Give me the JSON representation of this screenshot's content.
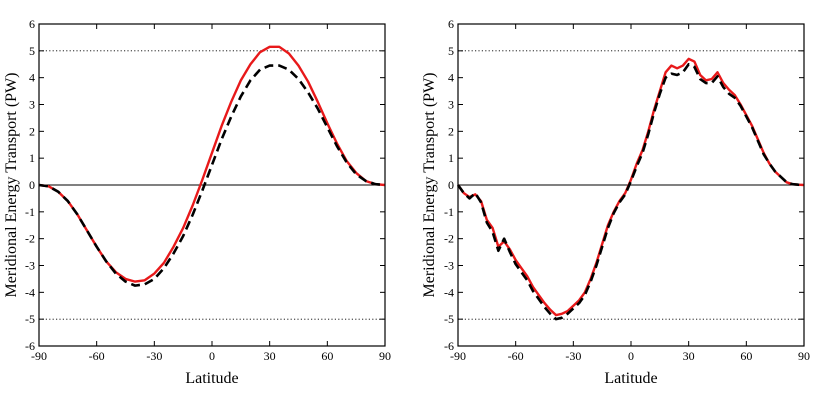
{
  "chart_data": [
    {
      "type": "line",
      "panel": "left",
      "title": "",
      "xlabel": "Latitude",
      "ylabel": "Meridional Energy Transport (PW)",
      "xlim": [
        -90,
        90
      ],
      "ylim": [
        -6,
        6
      ],
      "xticks": [
        -90,
        -60,
        -30,
        0,
        30,
        60,
        90
      ],
      "yticks": [
        -6,
        -5,
        -4,
        -3,
        -2,
        -1,
        0,
        1,
        2,
        3,
        4,
        5,
        6
      ],
      "reference_lines": [
        {
          "y": 5,
          "style": "dotted"
        },
        {
          "y": -5,
          "style": "dotted"
        },
        {
          "y": 0,
          "style": "solid"
        }
      ],
      "series": [
        {
          "name": "red-solid",
          "color": "#e8191a",
          "style": "solid",
          "x": [
            -90,
            -85,
            -80,
            -75,
            -70,
            -65,
            -60,
            -55,
            -50,
            -45,
            -40,
            -35,
            -30,
            -25,
            -20,
            -15,
            -10,
            -5,
            0,
            5,
            10,
            15,
            20,
            25,
            30,
            35,
            40,
            45,
            50,
            55,
            60,
            65,
            70,
            75,
            80,
            85,
            90
          ],
          "y": [
            0,
            -0.05,
            -0.25,
            -0.6,
            -1.1,
            -1.7,
            -2.3,
            -2.85,
            -3.25,
            -3.5,
            -3.6,
            -3.55,
            -3.3,
            -2.9,
            -2.3,
            -1.6,
            -0.75,
            0.2,
            1.2,
            2.2,
            3.1,
            3.9,
            4.5,
            4.95,
            5.15,
            5.15,
            4.9,
            4.45,
            3.85,
            3.1,
            2.3,
            1.55,
            0.9,
            0.45,
            0.15,
            0.03,
            0
          ]
        },
        {
          "name": "black-dashed",
          "color": "#000000",
          "style": "dashed",
          "x": [
            -90,
            -85,
            -80,
            -75,
            -70,
            -65,
            -60,
            -55,
            -50,
            -45,
            -40,
            -35,
            -30,
            -25,
            -20,
            -15,
            -10,
            -5,
            0,
            5,
            10,
            15,
            20,
            25,
            30,
            35,
            40,
            45,
            50,
            55,
            60,
            65,
            70,
            75,
            80,
            85,
            90
          ],
          "y": [
            0,
            -0.05,
            -0.25,
            -0.6,
            -1.1,
            -1.7,
            -2.3,
            -2.85,
            -3.3,
            -3.6,
            -3.75,
            -3.7,
            -3.5,
            -3.1,
            -2.55,
            -1.9,
            -1.1,
            -0.2,
            0.75,
            1.7,
            2.55,
            3.3,
            3.9,
            4.3,
            4.45,
            4.45,
            4.3,
            3.95,
            3.45,
            2.85,
            2.15,
            1.45,
            0.85,
            0.4,
            0.15,
            0.03,
            0
          ]
        }
      ]
    },
    {
      "type": "line",
      "panel": "right",
      "title": "",
      "xlabel": "Latitude",
      "ylabel": "Meridional Energy Transport (PW)",
      "xlim": [
        -90,
        90
      ],
      "ylim": [
        -6,
        6
      ],
      "xticks": [
        -90,
        -60,
        -30,
        0,
        30,
        60,
        90
      ],
      "yticks": [
        -6,
        -5,
        -4,
        -3,
        -2,
        -1,
        0,
        1,
        2,
        3,
        4,
        5,
        6
      ],
      "reference_lines": [
        {
          "y": 5,
          "style": "dotted"
        },
        {
          "y": -5,
          "style": "dotted"
        },
        {
          "y": 0,
          "style": "solid"
        }
      ],
      "series": [
        {
          "name": "red-solid",
          "color": "#e8191a",
          "style": "solid",
          "x": [
            -90,
            -87,
            -84,
            -81,
            -78,
            -75,
            -72,
            -69,
            -66,
            -63,
            -60,
            -57,
            -54,
            -51,
            -48,
            -45,
            -42,
            -39,
            -36,
            -33,
            -30,
            -27,
            -24,
            -21,
            -18,
            -15,
            -12,
            -9,
            -6,
            -3,
            0,
            3,
            6,
            9,
            12,
            15,
            18,
            21,
            24,
            27,
            30,
            33,
            36,
            39,
            42,
            45,
            48,
            51,
            54,
            57,
            60,
            63,
            66,
            69,
            72,
            75,
            78,
            81,
            84,
            87,
            90
          ],
          "y": [
            0,
            -0.3,
            -0.45,
            -0.35,
            -0.6,
            -1.3,
            -1.6,
            -2.3,
            -2.1,
            -2.4,
            -2.8,
            -3.1,
            -3.4,
            -3.8,
            -4.1,
            -4.4,
            -4.65,
            -4.85,
            -4.8,
            -4.7,
            -4.5,
            -4.3,
            -4.0,
            -3.5,
            -2.9,
            -2.2,
            -1.5,
            -1.0,
            -0.6,
            -0.3,
            0.2,
            0.8,
            1.3,
            2.0,
            2.8,
            3.5,
            4.2,
            4.45,
            4.35,
            4.45,
            4.7,
            4.6,
            4.1,
            3.9,
            3.95,
            4.2,
            3.8,
            3.55,
            3.35,
            3.0,
            2.6,
            2.2,
            1.7,
            1.2,
            0.8,
            0.5,
            0.3,
            0.1,
            0.03,
            0.01,
            0
          ]
        },
        {
          "name": "black-dashed",
          "color": "#000000",
          "style": "dashed",
          "x": [
            -90,
            -87,
            -84,
            -81,
            -78,
            -75,
            -72,
            -69,
            -66,
            -63,
            -60,
            -57,
            -54,
            -51,
            -48,
            -45,
            -42,
            -39,
            -36,
            -33,
            -30,
            -27,
            -24,
            -21,
            -18,
            -15,
            -12,
            -9,
            -6,
            -3,
            0,
            3,
            6,
            9,
            12,
            15,
            18,
            21,
            24,
            27,
            30,
            33,
            36,
            39,
            42,
            45,
            48,
            51,
            54,
            57,
            60,
            63,
            66,
            69,
            72,
            75,
            78,
            81,
            84,
            87,
            90
          ],
          "y": [
            0,
            -0.3,
            -0.5,
            -0.3,
            -0.65,
            -1.4,
            -1.75,
            -2.45,
            -2.0,
            -2.5,
            -2.95,
            -3.25,
            -3.55,
            -3.95,
            -4.25,
            -4.55,
            -4.8,
            -5.0,
            -4.95,
            -4.8,
            -4.6,
            -4.4,
            -4.1,
            -3.6,
            -3.0,
            -2.3,
            -1.6,
            -1.05,
            -0.65,
            -0.35,
            0.15,
            0.7,
            1.2,
            1.9,
            2.7,
            3.4,
            4.0,
            4.15,
            4.1,
            4.2,
            4.5,
            4.4,
            3.95,
            3.8,
            3.8,
            4.05,
            3.65,
            3.4,
            3.25,
            2.95,
            2.55,
            2.15,
            1.65,
            1.15,
            0.8,
            0.5,
            0.3,
            0.1,
            0.03,
            0.01,
            0
          ]
        }
      ]
    }
  ]
}
